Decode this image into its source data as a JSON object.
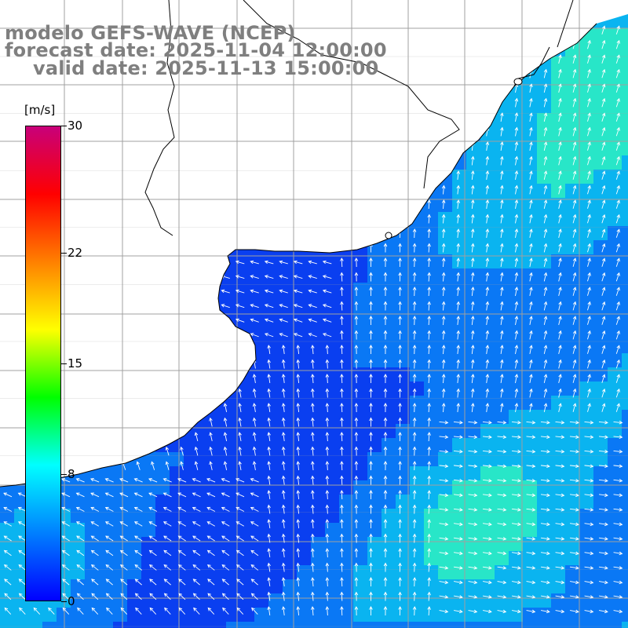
{
  "title_lines": [
    "modelo GEFS-WAVE (NCEP)",
    "forecast date: 2025-11-04 12:00:00",
    "valid date: 2025-11-13 15:00:00"
  ],
  "colorbar": {
    "unit_label": "[m/s]",
    "ticks": [
      "30",
      "22",
      "15",
      "8",
      "0"
    ],
    "tick_values": [
      30,
      22,
      15,
      8,
      0
    ],
    "min": 0,
    "max": 30,
    "colors": [
      "#0000ff",
      "#0080ff",
      "#00ffff",
      "#00ff00",
      "#ffff00",
      "#ff8000",
      "#ff0000",
      "#c8007a"
    ]
  },
  "map": {
    "variable": "wind speed and direction",
    "land_color": "#ffffff",
    "grid_color": "#a0a0a0",
    "arrow_color": "#ffffff",
    "field_colors": {
      "low": "#0a3ff0",
      "mid": "#0a78f5",
      "high": "#0ab4f0",
      "peak": "#28e6c8"
    }
  }
}
